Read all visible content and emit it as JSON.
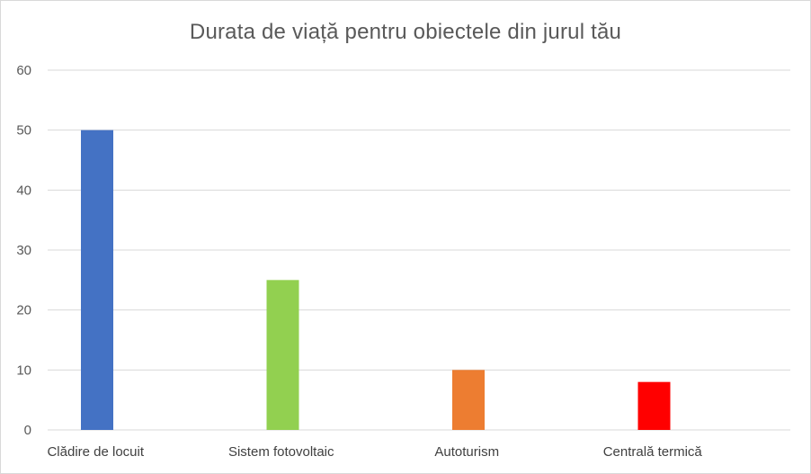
{
  "chart_data": {
    "type": "bar",
    "title": "Durata de viață pentru obiectele din jurul tău",
    "xlabel": "",
    "ylabel": "",
    "categories": [
      "Clădire de locuit",
      "Sistem fotovoltaic",
      "Autoturism",
      "Centrală termică"
    ],
    "values": [
      50,
      25,
      10,
      8
    ],
    "colors": [
      "#4472c4",
      "#92d050",
      "#ed7d31",
      "#ff0000"
    ],
    "ylim": [
      0,
      60
    ],
    "yticks": [
      0,
      10,
      20,
      30,
      40,
      50,
      60
    ],
    "grid": true,
    "legend": "none"
  }
}
